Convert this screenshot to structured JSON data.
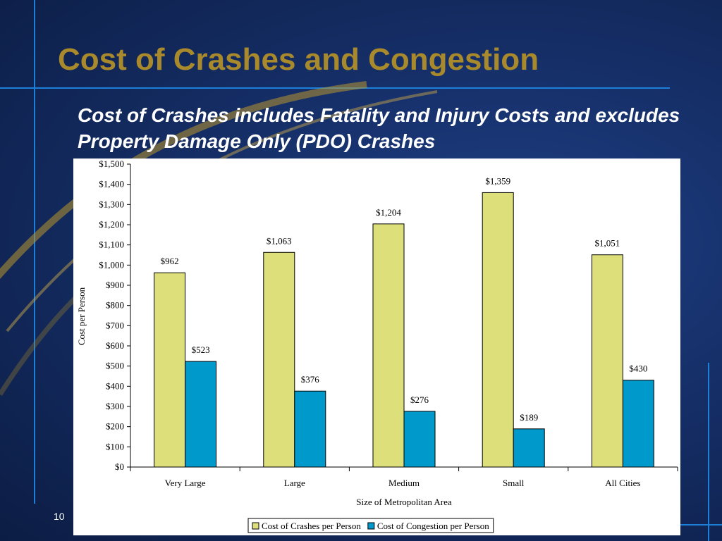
{
  "slide": {
    "title": "Cost of Crashes and Congestion",
    "subtitle": "Cost of Crashes includes Fatality and Injury Costs and excludes Property Damage Only (PDO) Crashes",
    "page_number": "10",
    "colors": {
      "title": "#a8892b",
      "accent_line": "#1e7fd9",
      "background": "#16306a"
    }
  },
  "chart_data": {
    "type": "bar",
    "xlabel": "Size of Metropolitan Area",
    "ylabel": "Cost per Person",
    "categories": [
      "Very Large",
      "Large",
      "Medium",
      "Small",
      "All Cities"
    ],
    "series": [
      {
        "name": "Cost of Crashes per Person",
        "values": [
          962,
          1063,
          1204,
          1359,
          1051
        ],
        "labels": [
          "$962",
          "$1,063",
          "$1,204",
          "$1,359",
          "$1,051"
        ],
        "color": "#dde07a"
      },
      {
        "name": "Cost of Congestion per Person",
        "values": [
          523,
          376,
          276,
          189,
          430
        ],
        "labels": [
          "$523",
          "$376",
          "$276",
          "$189",
          "$430"
        ],
        "color": "#0099cc"
      }
    ],
    "ylim": [
      0,
      1500
    ],
    "yticks": [
      0,
      100,
      200,
      300,
      400,
      500,
      600,
      700,
      800,
      900,
      1000,
      1100,
      1200,
      1300,
      1400,
      1500
    ],
    "ytick_labels": [
      "$0",
      "$100",
      "$200",
      "$300",
      "$400",
      "$500",
      "$600",
      "$700",
      "$800",
      "$900",
      "$1,000",
      "$1,100",
      "$1,200",
      "$1,300",
      "$1,400",
      "$1,500"
    ],
    "grid": false,
    "legend_position": "bottom"
  }
}
